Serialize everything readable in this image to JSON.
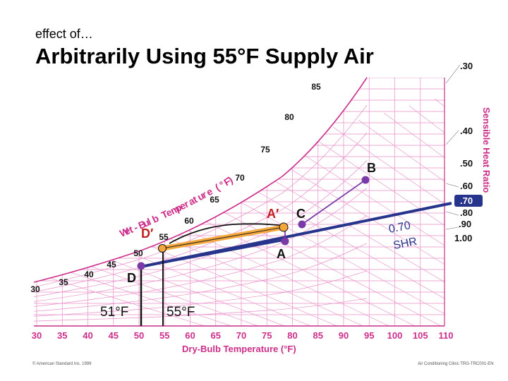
{
  "slide": {
    "kicker": "effect of…",
    "title": "Arbitrarily Using 55°F Supply Air",
    "footer_left": "© American Standard Inc. 1999",
    "footer_right": "Air Conditioning Clinic TRG-TRC001-EN"
  },
  "chart": {
    "xlabel": "Dry-Bulb Temperature (°F)",
    "x_ticks": [
      "30",
      "35",
      "40",
      "45",
      "50",
      "55",
      "60",
      "65",
      "70",
      "75",
      "80",
      "85",
      "90",
      "95",
      "100",
      "105",
      "110"
    ],
    "wetbulb_label": "Wet-Bulb Temperature (°F)",
    "wetbulb_ticks": [
      "30",
      "35",
      "40",
      "45",
      "50",
      "55",
      "60",
      "65",
      "70",
      "75",
      "80",
      "85"
    ],
    "shr_label": "Sensible Heat Ratio",
    "shr_ticks": [
      ".30",
      ".40",
      ".50",
      ".60",
      ".70",
      ".80",
      ".90",
      "1.00"
    ],
    "shr_highlight": ".70",
    "points": {
      "A": "A",
      "A_prime": "A′",
      "B": "B",
      "C": "C",
      "D": "D",
      "D_prime": "D′"
    },
    "shr_line_label": "0.70 SHR",
    "temp_51": "51°F",
    "temp_55": "55°F",
    "colors": {
      "grid": "#e88cc8",
      "saturation": "#cc2e8a",
      "process_line": "#27348b",
      "highlight": "#f4a83c",
      "point": "#7a3aa8"
    }
  }
}
